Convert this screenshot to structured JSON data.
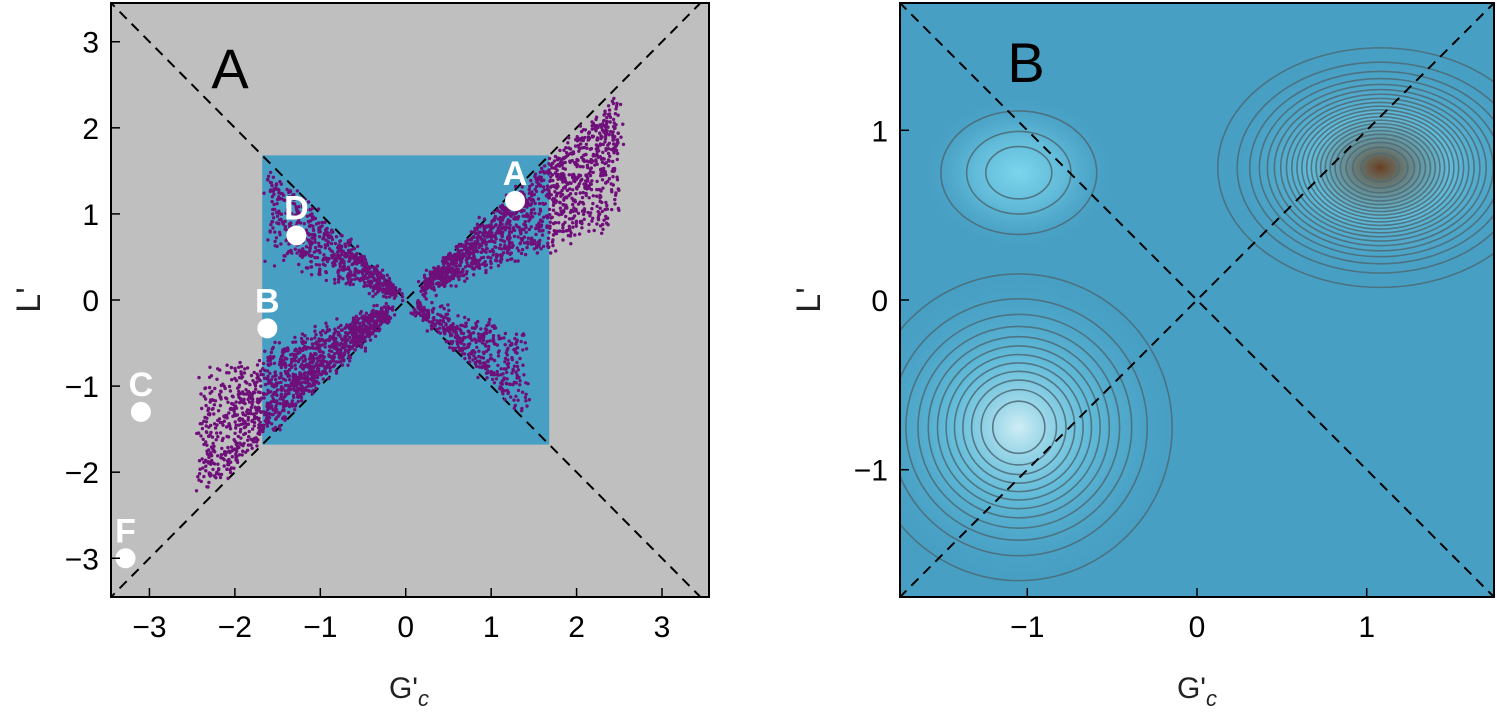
{
  "chart_data": [
    {
      "type": "scatter",
      "panel_label": "A",
      "xlabel": "G'",
      "xlabel_sub": "c",
      "ylabel": "L'",
      "xlim": [
        -3.45,
        3.55
      ],
      "ylim": [
        -3.45,
        3.45
      ],
      "xticks": [
        "−3",
        "−2",
        "−1",
        "0",
        "1",
        "2",
        "3"
      ],
      "xtick_values": [
        -3,
        -2,
        -1,
        0,
        1,
        2,
        3
      ],
      "yticks": [
        "−3",
        "−2",
        "−1",
        "0",
        "1",
        "2",
        "3"
      ],
      "ytick_values": [
        -3,
        -2,
        -1,
        0,
        1,
        2,
        3
      ],
      "background": "#bfbfbf",
      "region": {
        "x": [
          -1.68,
          1.68
        ],
        "y": [
          -1.68,
          1.68
        ],
        "color": "#47a0c4"
      },
      "diagonals": true,
      "scatter_color": "#6e0f7a",
      "clusters": [
        {
          "name": "upper-right",
          "n": 1400,
          "x": [
            0.2,
            2.5
          ],
          "y_frac": [
            0.35,
            0.95
          ]
        },
        {
          "name": "lower-left",
          "n": 1400,
          "x": [
            -2.4,
            -0.2
          ],
          "y_frac": [
            0.35,
            0.95
          ]
        },
        {
          "name": "upper-left",
          "n": 650,
          "x": [
            -1.6,
            -0.1
          ],
          "y_frac": [
            0.25,
            0.95
          ]
        },
        {
          "name": "lower-right",
          "n": 420,
          "x": [
            0.1,
            1.4
          ],
          "y_frac": [
            0.25,
            0.95
          ]
        }
      ],
      "labeled_points": [
        {
          "label": "A",
          "x": 1.28,
          "y": 1.15
        },
        {
          "label": "D",
          "x": -1.28,
          "y": 0.75
        },
        {
          "label": "B",
          "x": -1.62,
          "y": -0.33
        },
        {
          "label": "C",
          "x": -3.1,
          "y": -1.3
        },
        {
          "label": "F",
          "x": -3.28,
          "y": -3.0
        }
      ]
    },
    {
      "type": "heatmap",
      "panel_label": "B",
      "xlabel": "G'",
      "xlabel_sub": "c",
      "ylabel": "L'",
      "xlim": [
        -1.75,
        1.75
      ],
      "ylim": [
        -1.75,
        1.75
      ],
      "xticks": [
        "−1",
        "0",
        "1"
      ],
      "xtick_values": [
        -1,
        0,
        1
      ],
      "yticks": [
        "−1",
        "0",
        "1"
      ],
      "ytick_values": [
        -1,
        0,
        1
      ],
      "background": "#47a0c4",
      "diagonals": true,
      "contour_color": "#4c6a76",
      "peaks": [
        {
          "x": 1.08,
          "y": 0.78,
          "sx": 0.38,
          "sy": 0.28,
          "levels": 22,
          "color": "#6b3b18"
        },
        {
          "x": -1.05,
          "y": -0.75,
          "sx": 0.38,
          "sy": 0.38,
          "levels": 12,
          "color": "#d6f1f7"
        },
        {
          "x": -1.05,
          "y": 0.75,
          "sx": 0.24,
          "sy": 0.19,
          "levels": 3,
          "color": "#7ed8ee"
        }
      ]
    }
  ]
}
